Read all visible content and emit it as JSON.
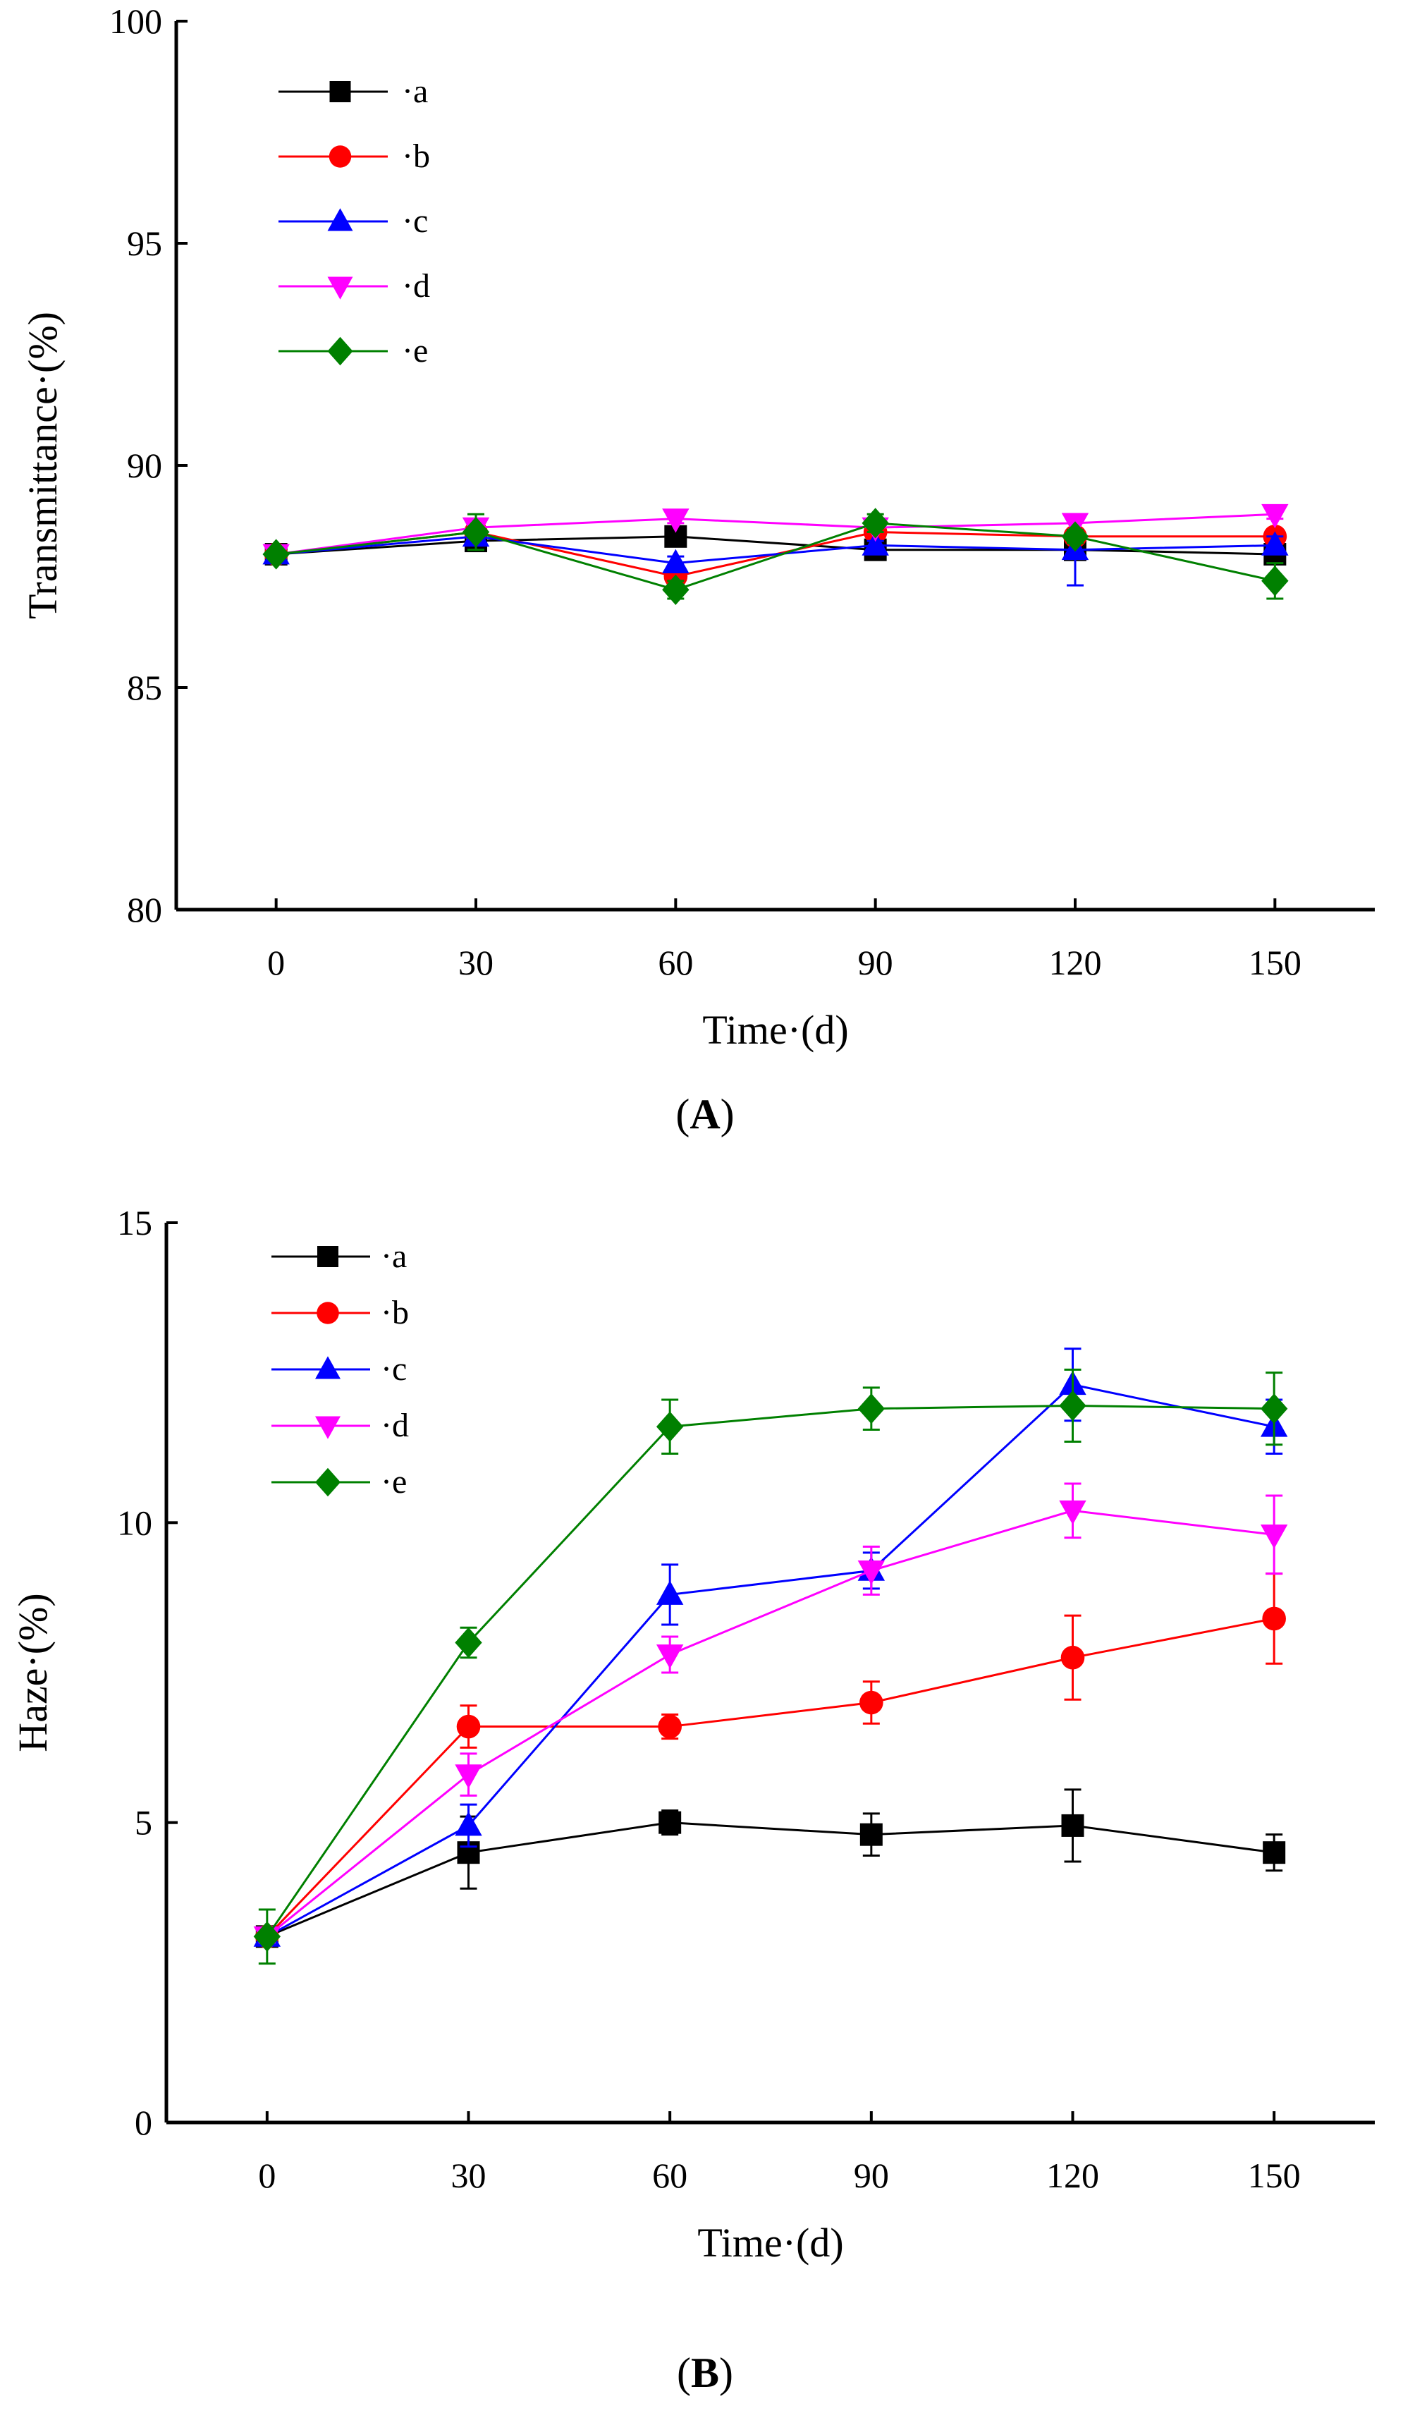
{
  "chart_data": [
    {
      "type": "line",
      "panel_label": "A",
      "xlabel": "Time·(d)",
      "ylabel": "Transmittance·(%)",
      "x": [
        0,
        30,
        60,
        90,
        120,
        150
      ],
      "xticks": [
        "0",
        "30",
        "60",
        "90",
        "120",
        "150"
      ],
      "xlim": [
        -15,
        165
      ],
      "ylim": [
        80,
        100
      ],
      "yticks": [
        "80",
        "85",
        "90",
        "95",
        "100"
      ],
      "grid": false,
      "legend_position": "top-left",
      "series": [
        {
          "name": "·a",
          "color": "#000000",
          "marker": "square",
          "values": [
            88.0,
            88.3,
            88.4,
            88.1,
            88.1,
            88.0
          ],
          "errors": [
            0.15,
            0.1,
            0.15,
            0.1,
            0.15,
            0.15
          ]
        },
        {
          "name": "·b",
          "color": "#ff0000",
          "marker": "circle",
          "values": [
            88.0,
            88.5,
            87.5,
            88.5,
            88.4,
            88.4
          ],
          "errors": [
            0.1,
            0.1,
            0.2,
            0.1,
            0.1,
            0.1
          ]
        },
        {
          "name": "·c",
          "color": "#0000ff",
          "marker": "triangle-up",
          "values": [
            88.0,
            88.4,
            87.8,
            88.2,
            88.1,
            88.2
          ],
          "errors": [
            0.1,
            0.1,
            0.15,
            0.1,
            0.8,
            0.2
          ]
        },
        {
          "name": "·d",
          "color": "#ff00ff",
          "marker": "triangle-down",
          "values": [
            88.0,
            88.6,
            88.8,
            88.6,
            88.7,
            88.9
          ],
          "errors": [
            0.1,
            0.15,
            0.1,
            0.1,
            0.15,
            0.1
          ]
        },
        {
          "name": "·e",
          "color": "#008000",
          "marker": "diamond",
          "values": [
            88.0,
            88.5,
            87.2,
            88.7,
            88.4,
            87.4
          ],
          "errors": [
            0.1,
            0.4,
            0.2,
            0.2,
            0.15,
            0.4
          ]
        }
      ]
    },
    {
      "type": "line",
      "panel_label": "B",
      "xlabel": "Time·(d)",
      "ylabel": "Haze·(%)",
      "x": [
        0,
        30,
        60,
        90,
        120,
        150
      ],
      "xticks": [
        "0",
        "30",
        "60",
        "90",
        "120",
        "150"
      ],
      "xlim": [
        -15,
        165
      ],
      "ylim": [
        0,
        15
      ],
      "yticks": [
        "0",
        "5",
        "10",
        "15"
      ],
      "grid": false,
      "legend_position": "top-left",
      "series": [
        {
          "name": "·a",
          "color": "#000000",
          "marker": "square",
          "values": [
            3.1,
            4.5,
            5.0,
            4.8,
            4.95,
            4.5
          ],
          "errors": [
            0.1,
            0.6,
            0.2,
            0.35,
            0.6,
            0.3
          ]
        },
        {
          "name": "·b",
          "color": "#ff0000",
          "marker": "circle",
          "values": [
            3.1,
            6.6,
            6.6,
            7.0,
            7.75,
            8.4
          ],
          "errors": [
            0.1,
            0.35,
            0.2,
            0.35,
            0.7,
            0.75
          ]
        },
        {
          "name": "·c",
          "color": "#0000ff",
          "marker": "triangle-up",
          "values": [
            3.1,
            4.95,
            8.8,
            9.2,
            12.3,
            11.6
          ],
          "errors": [
            0.1,
            0.35,
            0.5,
            0.3,
            0.6,
            0.45
          ]
        },
        {
          "name": "·d",
          "color": "#ff00ff",
          "marker": "triangle-down",
          "values": [
            3.1,
            5.8,
            7.8,
            9.2,
            10.2,
            9.8
          ],
          "errors": [
            0.1,
            0.35,
            0.3,
            0.4,
            0.45,
            0.65
          ]
        },
        {
          "name": "·e",
          "color": "#008000",
          "marker": "diamond",
          "values": [
            3.1,
            8.0,
            11.6,
            11.9,
            11.95,
            11.9
          ],
          "errors": [
            0.45,
            0.25,
            0.45,
            0.35,
            0.6,
            0.6
          ]
        }
      ]
    }
  ]
}
